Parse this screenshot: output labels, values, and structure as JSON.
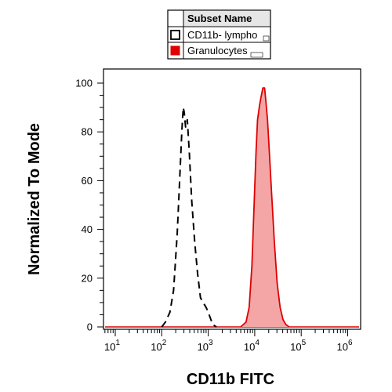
{
  "chart_data": {
    "type": "area",
    "xlabel": "CD11b FITC",
    "ylabel": "Normalized To Mode",
    "x_scale": "log",
    "xlim": [
      1,
      1000000
    ],
    "ylim": [
      0,
      105
    ],
    "x_ticks": [
      {
        "base": "10",
        "exp": "1",
        "value": 10
      },
      {
        "base": "10",
        "exp": "2",
        "value": 100
      },
      {
        "base": "10",
        "exp": "3",
        "value": 1000
      },
      {
        "base": "10",
        "exp": "4",
        "value": 10000
      },
      {
        "base": "10",
        "exp": "5",
        "value": 100000
      },
      {
        "base": "10",
        "exp": "6",
        "value": 1000000
      }
    ],
    "y_ticks": [
      {
        "label": "0",
        "value": 0
      },
      {
        "label": "20",
        "value": 20
      },
      {
        "label": "40",
        "value": 40
      },
      {
        "label": "60",
        "value": 60
      },
      {
        "label": "80",
        "value": 80
      },
      {
        "label": "100",
        "value": 100
      }
    ],
    "legend": {
      "header": "Subset Name",
      "placement": "top-center"
    },
    "series": [
      {
        "name": "CD11b- lympho",
        "style": "dashed",
        "color": "#000000",
        "fill": "none",
        "points": [
          [
            100,
            0
          ],
          [
            120,
            2
          ],
          [
            150,
            6
          ],
          [
            180,
            15
          ],
          [
            215,
            38
          ],
          [
            245,
            62
          ],
          [
            270,
            80
          ],
          [
            290,
            90
          ],
          [
            305,
            88
          ],
          [
            325,
            82
          ],
          [
            355,
            85
          ],
          [
            390,
            72
          ],
          [
            440,
            52
          ],
          [
            510,
            35
          ],
          [
            590,
            22
          ],
          [
            680,
            12
          ],
          [
            780,
            10
          ],
          [
            900,
            8
          ],
          [
            1000,
            6
          ],
          [
            1250,
            1
          ],
          [
            1500,
            0
          ]
        ]
      },
      {
        "name": "Granulocytes",
        "style": "solid",
        "color": "#dd0000",
        "fill": "#f4a6a6",
        "points": [
          [
            5000,
            0
          ],
          [
            6500,
            2
          ],
          [
            7600,
            8
          ],
          [
            8700,
            25
          ],
          [
            9700,
            50
          ],
          [
            10700,
            72
          ],
          [
            11500,
            85
          ],
          [
            12700,
            91
          ],
          [
            13600,
            94
          ],
          [
            15000,
            98
          ],
          [
            16300,
            98
          ],
          [
            17300,
            93
          ],
          [
            18800,
            85
          ],
          [
            20600,
            72
          ],
          [
            23000,
            55
          ],
          [
            26400,
            35
          ],
          [
            30400,
            18
          ],
          [
            35200,
            8
          ],
          [
            40600,
            3
          ],
          [
            46800,
            1
          ],
          [
            55000,
            0
          ]
        ]
      }
    ]
  }
}
